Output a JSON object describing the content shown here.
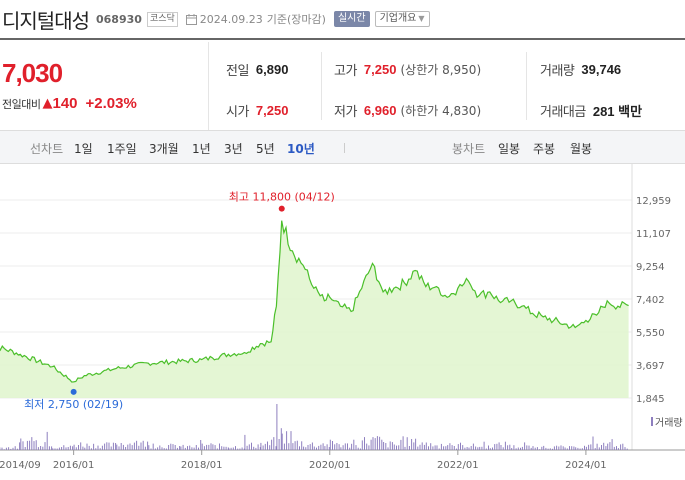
{
  "stock": {
    "name": "디지털대성",
    "code": "068930",
    "market": "코스닥",
    "date": "2024.09.23",
    "basis": "기준(장마감)",
    "realtime_label": "실시간",
    "company_label": "기업개요"
  },
  "price": {
    "current": "7,030",
    "change_label": "전일대비",
    "change": "140",
    "change_pct": "+2.03%",
    "color_up": "#e0202b"
  },
  "info": {
    "prev_label": "전일",
    "prev": "6,890",
    "high_label": "고가",
    "high": "7,250",
    "upper_limit": "(상한가 8,950)",
    "volume_label": "거래량",
    "volume": "39,746",
    "open_label": "시가",
    "open": "7,250",
    "low_label": "저가",
    "low": "6,960",
    "lower_limit": "(하한가 4,830)",
    "amount_label": "거래대금",
    "amount": "281 백만"
  },
  "toolbar": {
    "line_label": "선차트",
    "periods": [
      "1일",
      "1주일",
      "3개월",
      "1년",
      "3년",
      "5년",
      "10년"
    ],
    "active_period": "10년",
    "candle_label": "봉차트",
    "candles": [
      "일봉",
      "주봉",
      "월봉"
    ]
  },
  "chart_data": {
    "type": "area",
    "y_ticks": [
      "12,959",
      "11,107",
      "9,254",
      "7,402",
      "5,550",
      "3,697",
      "1,845"
    ],
    "x_ticks": [
      "2014/09",
      "2016/01",
      "2018/01",
      "2020/01",
      "2022/01",
      "2024/01"
    ],
    "max_label": "최고 11,800 (04/12)",
    "min_label": "최저 2,750 (02/19)",
    "volume_legend": "거래량",
    "ylim": [
      1845,
      12959
    ],
    "line_color": "#4bbf2a",
    "fill_color": "#dff5cc",
    "max_color": "#e0202b",
    "min_color": "#2b6bd9",
    "x": [
      "2014/09",
      "2015/03",
      "2015/09",
      "2016/01",
      "2016/03",
      "2016/09",
      "2017/03",
      "2017/09",
      "2018/01",
      "2018/03",
      "2018/06",
      "2018/09",
      "2018/12",
      "2019/02",
      "2019/03",
      "2019/04",
      "2019/06",
      "2019/08",
      "2019/10",
      "2019/12",
      "2020/01",
      "2020/03",
      "2020/05",
      "2020/07",
      "2020/09",
      "2020/11",
      "2021/01",
      "2021/03",
      "2021/05",
      "2021/07",
      "2021/09",
      "2021/11",
      "2022/01",
      "2022/03",
      "2022/05",
      "2022/07",
      "2022/09",
      "2022/11",
      "2023/01",
      "2023/03",
      "2023/05",
      "2023/07",
      "2023/09",
      "2023/11",
      "2024/01",
      "2024/03",
      "2024/05",
      "2024/07",
      "2024/09"
    ],
    "values": [
      4900,
      4300,
      3600,
      2750,
      3100,
      3500,
      3800,
      3900,
      4000,
      4100,
      4300,
      4400,
      4900,
      5000,
      7000,
      11800,
      10100,
      9300,
      8000,
      7300,
      7500,
      7000,
      6700,
      8000,
      9400,
      7800,
      8000,
      8300,
      9000,
      8100,
      8100,
      7500,
      8000,
      8400,
      7600,
      7800,
      7200,
      7300,
      7000,
      6600,
      6400,
      6200,
      6000,
      5800,
      6200,
      6500,
      7300,
      7000,
      7030
    ],
    "volumes": [
      0.15,
      0.5,
      0.2,
      0.35,
      0.3,
      0.4,
      0.25,
      0.2,
      0.3,
      0.25,
      0.2,
      0.3,
      0.35,
      0.5,
      1.0,
      0.85,
      0.45,
      0.35,
      0.3,
      0.3,
      0.4,
      0.3,
      0.25,
      0.55,
      0.6,
      0.35,
      0.3,
      0.5,
      0.45,
      0.35,
      0.25,
      0.2,
      0.3,
      0.25,
      0.2,
      0.3,
      0.35,
      0.2,
      0.2,
      0.15,
      0.2,
      0.18,
      0.15,
      0.2,
      0.25,
      0.3,
      0.45,
      0.25,
      0.2
    ]
  }
}
